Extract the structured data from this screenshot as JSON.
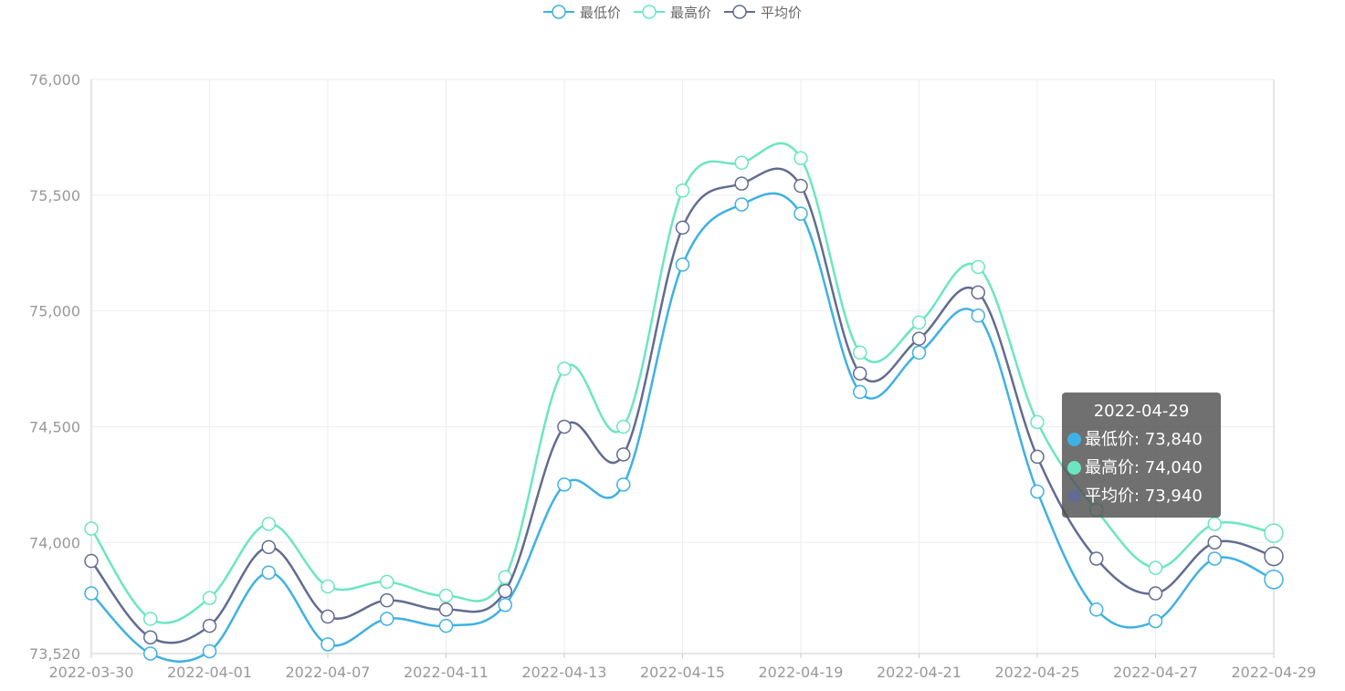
{
  "legend": [
    {
      "name": "最低价",
      "color": "#3fb1e3"
    },
    {
      "name": "最高价",
      "color": "#6be6c1"
    },
    {
      "name": "平均价",
      "color": "#626c91"
    }
  ],
  "tooltip": {
    "title": "2022-04-29",
    "rows": [
      {
        "text": "最低价: 73,840",
        "color": "#3fb1e3"
      },
      {
        "text": "最高价: 74,040",
        "color": "#6be6c1"
      },
      {
        "text": "平均价: 73,940",
        "color": "#626c91"
      }
    ]
  },
  "chart_data": {
    "type": "line",
    "smooth": true,
    "title": "",
    "xlabel": "",
    "ylabel": "",
    "ylim": [
      73520,
      76000
    ],
    "y_ticks": [
      "73,520",
      "74,000",
      "74,500",
      "75,000",
      "75,500",
      "76,000"
    ],
    "y_tick_values": [
      73520,
      74000,
      74500,
      75000,
      75500,
      76000
    ],
    "x_tick_labels": [
      "2022-03-30",
      "2022-04-01",
      "2022-04-07",
      "2022-04-11",
      "2022-04-13",
      "2022-04-15",
      "2022-04-19",
      "2022-04-21",
      "2022-04-25",
      "2022-04-27",
      "2022-04-29"
    ],
    "grid": true,
    "legend_position": "top-center",
    "x": [
      "2022-03-30",
      "2022-03-31",
      "2022-04-01",
      "2022-04-06",
      "2022-04-07",
      "2022-04-08",
      "2022-04-11",
      "2022-04-12",
      "2022-04-13",
      "2022-04-14",
      "2022-04-15",
      "2022-04-18",
      "2022-04-19",
      "2022-04-20",
      "2022-04-21",
      "2022-04-22",
      "2022-04-25",
      "2022-04-26",
      "2022-04-27",
      "2022-04-28",
      "2022-04-29"
    ],
    "series": [
      {
        "name": "最低价",
        "color": "#3fb1e3",
        "values": [
          73780,
          73520,
          73530,
          73870,
          73560,
          73670,
          73640,
          73730,
          74250,
          74250,
          75200,
          75460,
          75420,
          74650,
          74820,
          74980,
          74220,
          73710,
          73660,
          73930,
          73840
        ]
      },
      {
        "name": "最高价",
        "color": "#6be6c1",
        "values": [
          74060,
          73670,
          73760,
          74080,
          73810,
          73830,
          73770,
          73850,
          74750,
          74500,
          75520,
          75640,
          75660,
          74820,
          74950,
          75190,
          74520,
          74140,
          73890,
          74080,
          74040
        ]
      },
      {
        "name": "平均价",
        "color": "#626c91",
        "values": [
          73920,
          73590,
          73640,
          73980,
          73680,
          73750,
          73710,
          73790,
          74500,
          74380,
          75360,
          75550,
          75540,
          74730,
          74880,
          75080,
          74370,
          73930,
          73780,
          74000,
          73940
        ]
      }
    ]
  }
}
